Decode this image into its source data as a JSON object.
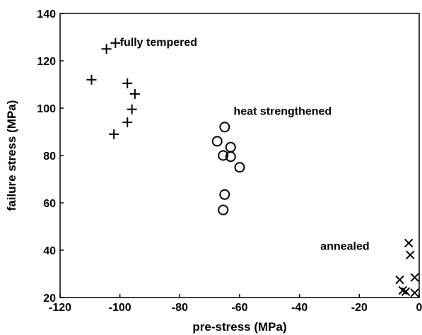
{
  "chart_data": {
    "type": "scatter",
    "title": "",
    "xlabel": "pre-stress (MPa)",
    "ylabel": "failure stress (MPa)",
    "xlim": [
      -120,
      0
    ],
    "ylim": [
      20,
      140
    ],
    "xticks": [
      -120,
      -100,
      -80,
      -60,
      -40,
      -20,
      0
    ],
    "yticks": [
      20,
      40,
      60,
      80,
      100,
      120,
      140
    ],
    "grid": false,
    "series": [
      {
        "group": "fully tempered",
        "marker": "plus",
        "points": [
          [
            -104.5,
            125
          ],
          [
            -101.5,
            127.5
          ],
          [
            -109.5,
            112
          ],
          [
            -97.5,
            110.5
          ],
          [
            -95,
            106
          ],
          [
            -96,
            99.5
          ],
          [
            -97.5,
            94
          ],
          [
            -102,
            89
          ]
        ]
      },
      {
        "group": "heat strengthened",
        "marker": "circle",
        "points": [
          [
            -65,
            92
          ],
          [
            -67.5,
            86
          ],
          [
            -63,
            83.5
          ],
          [
            -65.5,
            80
          ],
          [
            -63,
            79.5
          ],
          [
            -60,
            75
          ],
          [
            -65,
            63.5
          ],
          [
            -65.5,
            57
          ]
        ]
      },
      {
        "group": "annealed",
        "marker": "cross",
        "points": [
          [
            -3.5,
            43
          ],
          [
            -3,
            38
          ],
          [
            -1.5,
            28.5
          ],
          [
            -6.5,
            27.5
          ],
          [
            -5.5,
            23
          ],
          [
            -4.5,
            22.5
          ],
          [
            -1.5,
            22
          ]
        ]
      }
    ],
    "annotations": [
      {
        "text": "fully tempered",
        "x": -100,
        "y": 128
      },
      {
        "text": "heat strengthened",
        "x": -62,
        "y": 99
      },
      {
        "text": "annealed",
        "x": -33,
        "y": 42
      }
    ]
  }
}
